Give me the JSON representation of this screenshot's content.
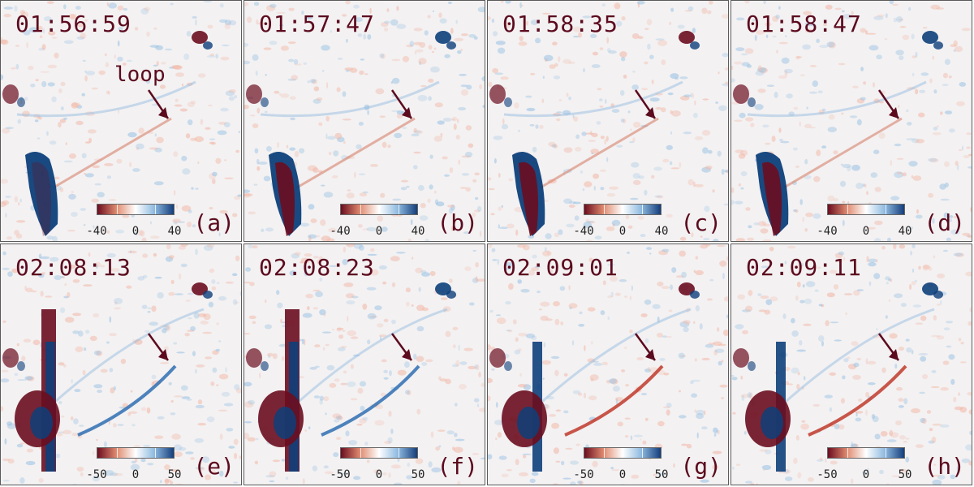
{
  "colors": {
    "red": "#6b0d1f",
    "blue": "#0d3f7a",
    "label": "#5c0a1e",
    "cbar_low": "#6b0d1f",
    "cbar_mid": "#ffffff",
    "cbar_high": "#143d7a"
  },
  "annotation": {
    "loop_text": "loop"
  },
  "panels": [
    {
      "time": "01:56:59",
      "letter": "(a)",
      "cbar": {
        "min": "-40",
        "zero": "0",
        "max": "40"
      },
      "has_loop_text": true
    },
    {
      "time": "01:57:47",
      "letter": "(b)",
      "cbar": {
        "min": "-40",
        "zero": "0",
        "max": "40"
      },
      "has_loop_text": false
    },
    {
      "time": "01:58:35",
      "letter": "(c)",
      "cbar": {
        "min": "-40",
        "zero": "0",
        "max": "40"
      },
      "has_loop_text": false
    },
    {
      "time": "01:58:47",
      "letter": "(d)",
      "cbar": {
        "min": "-40",
        "zero": "0",
        "max": "40"
      },
      "has_loop_text": false
    },
    {
      "time": "02:08:13",
      "letter": "(e)",
      "cbar": {
        "min": "-50",
        "zero": "0",
        "max": "50"
      },
      "has_loop_text": false
    },
    {
      "time": "02:08:23",
      "letter": "(f)",
      "cbar": {
        "min": "-50",
        "zero": "0",
        "max": "50"
      },
      "has_loop_text": false
    },
    {
      "time": "02:09:01",
      "letter": "(g)",
      "cbar": {
        "min": "-50",
        "zero": "0",
        "max": "50"
      },
      "has_loop_text": false
    },
    {
      "time": "02:09:11",
      "letter": "(h)",
      "cbar": {
        "min": "-50",
        "zero": "0",
        "max": "50"
      },
      "has_loop_text": false
    }
  ]
}
